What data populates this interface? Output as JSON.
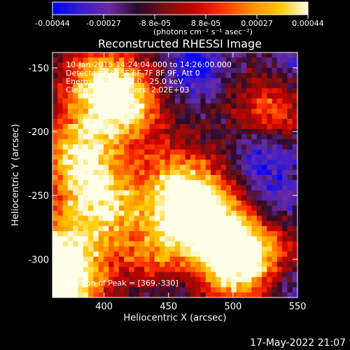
{
  "colorbar": {
    "ticks": [
      "-0.00044",
      "-0.00027",
      "-8.8e-05",
      "8.8e-05",
      "0.00027",
      "0.00044"
    ],
    "units": "(photons cm⁻² s⁻¹ asec⁻²)",
    "colors": [
      "#0000ff",
      "#3a1ccf",
      "#6a2c9e",
      "#2a0a2c",
      "#7a1010",
      "#c80000",
      "#ff3300",
      "#ff8c00",
      "#ffc800",
      "#ffffe8"
    ]
  },
  "chart_data": {
    "type": "heatmap",
    "title": "Reconstructed RHESSI Image",
    "xlabel": "Heliocentric X (arcsec)",
    "ylabel": "Heliocentric Y (arcsec)",
    "xlim": [
      360,
      550
    ],
    "ylim": [
      -330,
      -138
    ],
    "x_ticks": [
      400,
      450,
      500,
      550
    ],
    "y_ticks": [
      -150,
      -200,
      -250,
      -300
    ],
    "vmin": -0.00044,
    "vmax": 0.00044,
    "info_lines": [
      "10-Jan-2015 14:24:04.000 to 14:26:00.000",
      "Detectors: 3F 5F 6F 7F 8F 9F, Att 0",
      "Energy Range: 12.0 - 25.0 keV",
      "Clean     Total counts: 2.02E+03"
    ],
    "peak_annotation": "Position of Peak = [369,-330]",
    "peak": [
      369,
      -330
    ],
    "hot_regions": [
      {
        "x": 380,
        "y": -220,
        "level": 0.9
      },
      {
        "x": 415,
        "y": -180,
        "level": 0.85
      },
      {
        "x": 400,
        "y": -260,
        "level": 0.8
      },
      {
        "x": 460,
        "y": -245,
        "level": 0.95
      },
      {
        "x": 485,
        "y": -275,
        "level": 0.85
      },
      {
        "x": 440,
        "y": -290,
        "level": 0.7
      },
      {
        "x": 370,
        "y": -320,
        "level": 1.0
      },
      {
        "x": 500,
        "y": -310,
        "level": 0.75
      },
      {
        "x": 520,
        "y": -290,
        "level": 0.6
      },
      {
        "x": 395,
        "y": -160,
        "level": 0.65
      },
      {
        "x": 365,
        "y": -290,
        "level": 0.6
      },
      {
        "x": 530,
        "y": -180,
        "level": 0.55
      }
    ],
    "cold_regions": [
      {
        "x": 470,
        "y": -150,
        "level": 0.95
      },
      {
        "x": 545,
        "y": -150,
        "level": 0.7
      },
      {
        "x": 525,
        "y": -220,
        "level": 0.9
      },
      {
        "x": 530,
        "y": -260,
        "level": 0.75
      },
      {
        "x": 425,
        "y": -280,
        "level": 0.5
      },
      {
        "x": 460,
        "y": -320,
        "level": 0.55
      },
      {
        "x": 545,
        "y": -320,
        "level": 0.6
      }
    ]
  },
  "footer": {
    "timestamp": "17-May-2022 21:07"
  }
}
